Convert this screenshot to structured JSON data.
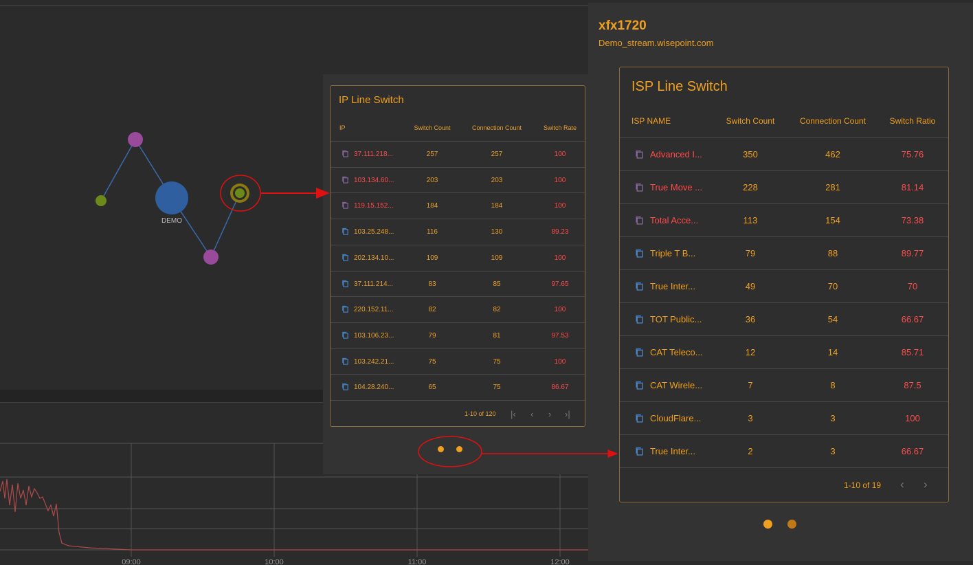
{
  "graph": {
    "center_node_label": "DEMO"
  },
  "timeline": {
    "x_ticks": [
      "09:00",
      "10:00",
      "11:00",
      "12:00"
    ]
  },
  "ip_table": {
    "title": "IP Line Switch",
    "headers": [
      "IP",
      "Switch Count",
      "Connection Count",
      "Switch Rate"
    ],
    "rows": [
      {
        "ip": "37.111.218...",
        "switch": "257",
        "conn": "257",
        "rate": "100",
        "highlight": true
      },
      {
        "ip": "103.134.60...",
        "switch": "203",
        "conn": "203",
        "rate": "100",
        "highlight": true
      },
      {
        "ip": "119.15.152...",
        "switch": "184",
        "conn": "184",
        "rate": "100",
        "highlight": true
      },
      {
        "ip": "103.25.248...",
        "switch": "116",
        "conn": "130",
        "rate": "89.23",
        "highlight": false
      },
      {
        "ip": "202.134.10...",
        "switch": "109",
        "conn": "109",
        "rate": "100",
        "highlight": false
      },
      {
        "ip": "37.111.214...",
        "switch": "83",
        "conn": "85",
        "rate": "97.65",
        "highlight": false
      },
      {
        "ip": "220.152.11...",
        "switch": "82",
        "conn": "82",
        "rate": "100",
        "highlight": false
      },
      {
        "ip": "103.106.23...",
        "switch": "79",
        "conn": "81",
        "rate": "97.53",
        "highlight": false
      },
      {
        "ip": "103.242.21...",
        "switch": "75",
        "conn": "75",
        "rate": "100",
        "highlight": false
      },
      {
        "ip": "104.28.240...",
        "switch": "65",
        "conn": "75",
        "rate": "86.67",
        "highlight": false
      }
    ],
    "pagination": "1-10 of 120"
  },
  "detail": {
    "title": "xfx1720",
    "subtitle": "Demo_stream.wisepoint.com"
  },
  "isp_table": {
    "title": "ISP Line Switch",
    "headers": [
      "ISP NAME",
      "Switch Count",
      "Connection Count",
      "Switch Ratio"
    ],
    "rows": [
      {
        "name": "Advanced I...",
        "switch": "350",
        "conn": "462",
        "ratio": "75.76",
        "highlight": true
      },
      {
        "name": "True Move ...",
        "switch": "228",
        "conn": "281",
        "ratio": "81.14",
        "highlight": true
      },
      {
        "name": "Total Acce...",
        "switch": "113",
        "conn": "154",
        "ratio": "73.38",
        "highlight": true
      },
      {
        "name": "Triple T B...",
        "switch": "79",
        "conn": "88",
        "ratio": "89.77",
        "highlight": false
      },
      {
        "name": "True Inter...",
        "switch": "49",
        "conn": "70",
        "ratio": "70",
        "highlight": false
      },
      {
        "name": "TOT Public...",
        "switch": "36",
        "conn": "54",
        "ratio": "66.67",
        "highlight": false
      },
      {
        "name": "CAT Teleco...",
        "switch": "12",
        "conn": "14",
        "ratio": "85.71",
        "highlight": false
      },
      {
        "name": "CAT Wirele...",
        "switch": "7",
        "conn": "8",
        "ratio": "87.5",
        "highlight": false
      },
      {
        "name": "CloudFlare...",
        "switch": "3",
        "conn": "3",
        "ratio": "100",
        "highlight": false
      },
      {
        "name": "True Inter...",
        "switch": "2",
        "conn": "3",
        "ratio": "66.67",
        "highlight": false
      }
    ],
    "pagination": "1-10 of 19"
  },
  "colors": {
    "accent": "#f0a020",
    "alert": "#ff4a4a",
    "annotation": "#e01010",
    "node_purple": "#9a4a9a",
    "node_blue": "#2f5f9f",
    "node_green": "#6b8a1a"
  }
}
